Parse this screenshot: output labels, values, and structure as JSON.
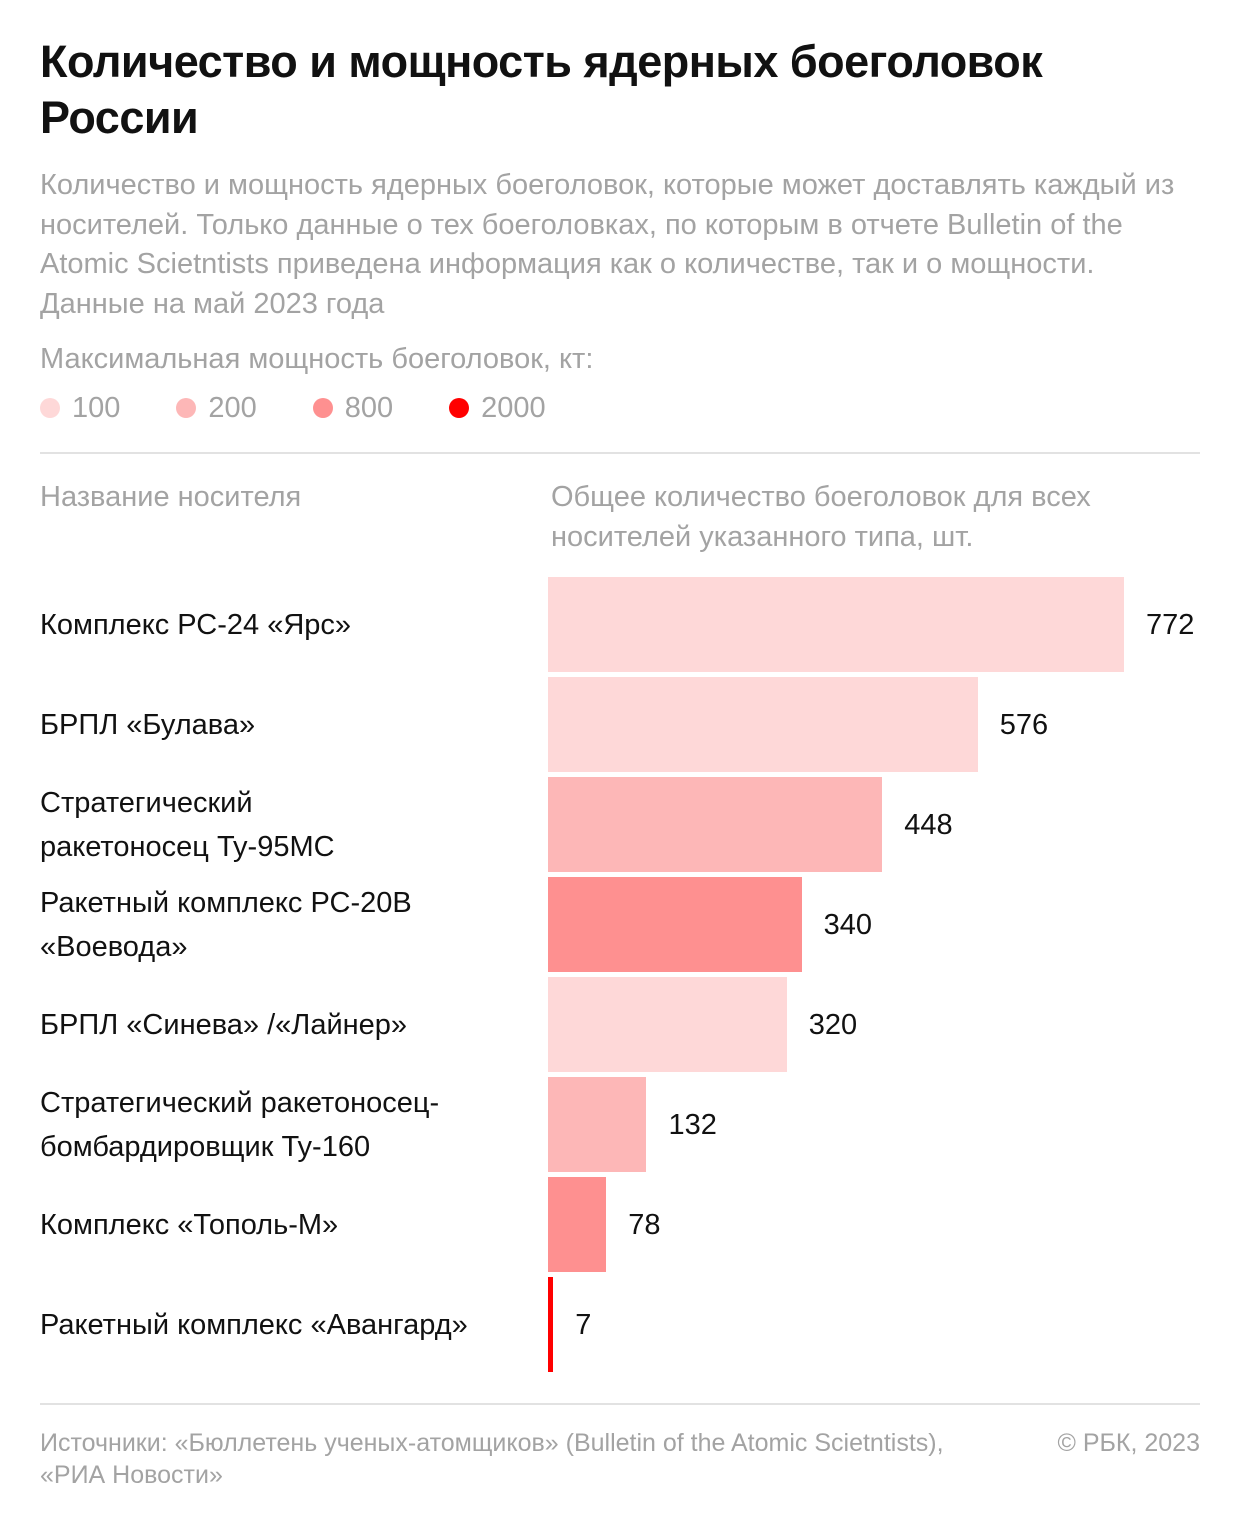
{
  "title": "Количество и мощность ядерных боеголовок России",
  "subtitle": "Количество и мощность ядерных боеголовок, которые может доставлять каждый из носителей. Только данные о тех боеголовках, по которым в отчете Bulletin of the Atomic Scietntists приведена информация как о количестве, так и о мощности. Данные на май 2023 года",
  "legend": {
    "title": "Максимальная мощность боеголовок, кт:",
    "items": [
      {
        "label": "100",
        "color": "#fed8d8"
      },
      {
        "label": "200",
        "color": "#fdb7b7"
      },
      {
        "label": "800",
        "color": "#fe9090"
      },
      {
        "label": "2000",
        "color": "#ff0000"
      }
    ]
  },
  "columns": {
    "name": "Название носителя",
    "value": "Общее количество боеголовок для всех носителей указанного типа, шт."
  },
  "chart_data": {
    "type": "bar",
    "orientation": "horizontal",
    "categories": [
      "Комплекс РС-24 «Ярс»",
      "БРПЛ «Булава»",
      "Стратегический ракетоносец Ту-95МС",
      "Ракетный комплекс РС-20В «Воевода»",
      "БРПЛ «Синева» /«Лайнер»",
      "Стратегический ракетоносец-бомбардировщик Ту-160",
      "Комплекс «Тополь-М»",
      "Ракетный комплекс «Авангард»"
    ],
    "label_lines": [
      [
        "Комплекс РС-24 «Ярс»"
      ],
      [
        "БРПЛ «Булава»"
      ],
      [
        "Стратегический",
        "ракетоносец Ту-95МС"
      ],
      [
        "Ракетный комплекс РС-20В",
        "«Воевода»"
      ],
      [
        "БРПЛ «Синева» /«Лайнер»"
      ],
      [
        "Стратегический ракетоносец-",
        "бомбардировщик Ту-160"
      ],
      [
        "Комплекс «Тополь-М»"
      ],
      [
        "Ракетный комплекс «Авангард»"
      ]
    ],
    "values": [
      772,
      576,
      448,
      340,
      320,
      132,
      78,
      7
    ],
    "max_yield_kt": [
      100,
      100,
      200,
      800,
      100,
      200,
      800,
      2000
    ],
    "xlim": [
      0,
      772
    ]
  },
  "footer": {
    "sources": "Источники: «Бюллетень ученых-атомщиков» (Bulletin of the Atomic Scietntists), «РИА Новости»",
    "copyright": "© РБК, 2023"
  }
}
